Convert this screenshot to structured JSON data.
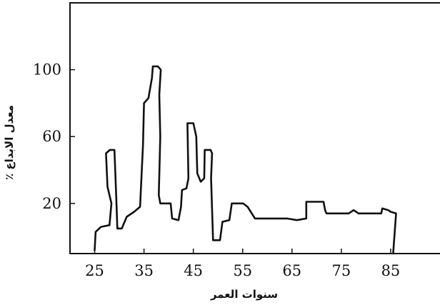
{
  "chart_data": {
    "type": "line",
    "xlabel": "سنوات العمر",
    "ylabel": "معدل الابداع ٪",
    "xlim": [
      20,
      95
    ],
    "ylim": [
      -10,
      140
    ],
    "x_ticks": [
      25,
      35,
      45,
      55,
      65,
      75,
      85
    ],
    "x_tick_labels": [
      "25",
      "35",
      "45",
      "55",
      "65",
      "75",
      "85"
    ],
    "y_ticks": [
      20,
      60,
      100
    ],
    "y_tick_labels": [
      "20",
      "60",
      "100"
    ],
    "grid": false,
    "legend": "none",
    "line_color": "#111111",
    "series": [
      {
        "values": [
          [
            25.0,
            -8
          ],
          [
            25.2,
            3
          ],
          [
            26.3,
            6
          ],
          [
            28.0,
            7
          ],
          [
            28.4,
            20
          ],
          [
            27.6,
            30
          ],
          [
            27.3,
            50
          ],
          [
            28.1,
            52
          ],
          [
            29.0,
            52
          ],
          [
            29.3,
            30
          ],
          [
            29.6,
            5
          ],
          [
            30.5,
            5
          ],
          [
            31.5,
            12
          ],
          [
            33.0,
            15
          ],
          [
            34.2,
            18
          ],
          [
            34.8,
            55
          ],
          [
            35.0,
            80
          ],
          [
            35.9,
            83
          ],
          [
            36.6,
            95
          ],
          [
            36.8,
            102
          ],
          [
            37.8,
            102
          ],
          [
            38.4,
            100
          ],
          [
            38.1,
            85
          ],
          [
            38.3,
            60
          ],
          [
            38.0,
            25
          ],
          [
            38.3,
            20
          ],
          [
            40.4,
            20
          ],
          [
            40.7,
            11
          ],
          [
            42.0,
            10
          ],
          [
            42.5,
            18
          ],
          [
            42.7,
            28
          ],
          [
            43.6,
            29
          ],
          [
            44.0,
            35
          ],
          [
            43.8,
            68
          ],
          [
            45.0,
            68
          ],
          [
            45.6,
            60
          ],
          [
            45.8,
            38
          ],
          [
            46.5,
            33
          ],
          [
            47.2,
            35
          ],
          [
            47.3,
            52
          ],
          [
            48.5,
            52
          ],
          [
            48.8,
            50
          ],
          [
            48.6,
            35
          ],
          [
            49.0,
            -2
          ],
          [
            50.4,
            -2
          ],
          [
            50.9,
            9
          ],
          [
            52.3,
            10
          ],
          [
            52.8,
            20
          ],
          [
            55.1,
            20
          ],
          [
            56.0,
            18
          ],
          [
            57.5,
            11
          ],
          [
            64.0,
            11
          ],
          [
            66.0,
            10
          ],
          [
            67.9,
            11
          ],
          [
            67.9,
            21
          ],
          [
            71.4,
            21
          ],
          [
            71.7,
            16
          ],
          [
            72.0,
            14
          ],
          [
            76.5,
            14
          ],
          [
            77.5,
            16
          ],
          [
            78.5,
            14
          ],
          [
            83.1,
            14
          ],
          [
            83.3,
            17
          ],
          [
            84.5,
            16
          ],
          [
            85.0,
            15
          ],
          [
            86.1,
            14
          ],
          [
            85.5,
            -10
          ]
        ]
      }
    ]
  }
}
